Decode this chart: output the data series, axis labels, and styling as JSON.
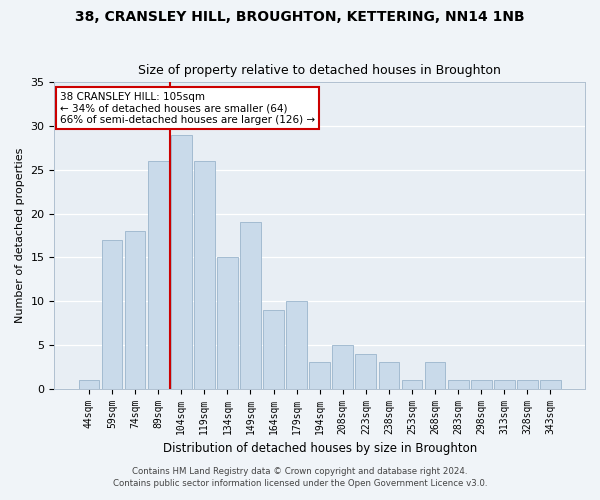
{
  "title1": "38, CRANSLEY HILL, BROUGHTON, KETTERING, NN14 1NB",
  "title2": "Size of property relative to detached houses in Broughton",
  "xlabel": "Distribution of detached houses by size in Broughton",
  "ylabel": "Number of detached properties",
  "bin_labels": [
    "44sqm",
    "59sqm",
    "74sqm",
    "89sqm",
    "104sqm",
    "119sqm",
    "134sqm",
    "149sqm",
    "164sqm",
    "179sqm",
    "194sqm",
    "208sqm",
    "223sqm",
    "238sqm",
    "253sqm",
    "268sqm",
    "283sqm",
    "298sqm",
    "313sqm",
    "328sqm",
    "343sqm"
  ],
  "bar_values": [
    1,
    17,
    18,
    26,
    29,
    26,
    15,
    19,
    9,
    10,
    3,
    5,
    4,
    3,
    1,
    3,
    1,
    1,
    1,
    1,
    1
  ],
  "bar_color": "#c9daea",
  "bar_edge_color": "#9ab5cc",
  "vline_color": "#cc0000",
  "annotation_text": "38 CRANSLEY HILL: 105sqm\n← 34% of detached houses are smaller (64)\n66% of semi-detached houses are larger (126) →",
  "annotation_box_color": "#ffffff",
  "annotation_box_edge": "#cc0000",
  "ylim": [
    0,
    35
  ],
  "yticks": [
    0,
    5,
    10,
    15,
    20,
    25,
    30,
    35
  ],
  "footer1": "Contains HM Land Registry data © Crown copyright and database right 2024.",
  "footer2": "Contains public sector information licensed under the Open Government Licence v3.0.",
  "bg_color": "#f0f4f8",
  "plot_bg_color": "#e8eef4",
  "grid_color": "#ffffff"
}
